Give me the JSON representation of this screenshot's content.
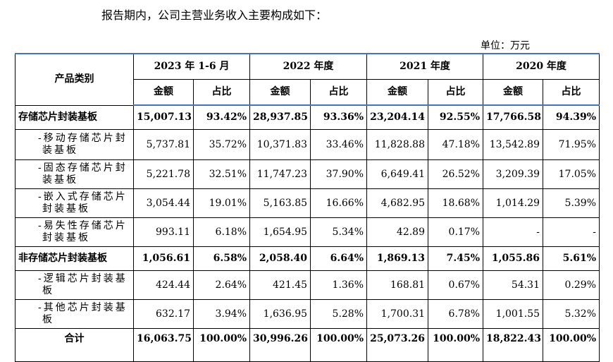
{
  "intro": "报告期内，公司主营业务收入主要构成如下：",
  "unit": "单位：万元",
  "table": {
    "header": {
      "category": "产品类别",
      "periods": [
        "2023 年 1-6 月",
        "2022 年度",
        "2021 年度",
        "2020 年度"
      ],
      "amount": "金额",
      "ratio": "占比"
    },
    "rows": [
      {
        "label": "存储芯片封装基板",
        "values": [
          "15,007.13",
          "93.42%",
          "28,937.85",
          "93.36%",
          "23,204.14",
          "92.55%",
          "17,766.58",
          "94.39%"
        ]
      },
      {
        "label": "-移动存储芯片封装基板",
        "values": [
          "5,737.81",
          "35.72%",
          "10,371.83",
          "33.46%",
          "11,828.88",
          "47.18%",
          "13,542.89",
          "71.95%"
        ]
      },
      {
        "label": "-固态存储芯片封装基板",
        "values": [
          "5,221.78",
          "32.51%",
          "11,747.23",
          "37.90%",
          "6,649.41",
          "26.52%",
          "3,209.39",
          "17.05%"
        ]
      },
      {
        "label": "-嵌入式存储芯片封装基板",
        "values": [
          "3,054.44",
          "19.01%",
          "5,163.85",
          "16.66%",
          "4,682.95",
          "18.68%",
          "1,014.29",
          "5.39%"
        ]
      },
      {
        "label": "-易失性存储芯片封装基板",
        "values": [
          "993.11",
          "6.18%",
          "1,654.95",
          "5.34%",
          "42.89",
          "0.17%",
          "-",
          "-"
        ]
      },
      {
        "label": "非存储芯片封装基板",
        "values": [
          "1,056.61",
          "6.58%",
          "2,058.40",
          "6.64%",
          "1,869.13",
          "7.45%",
          "1,055.86",
          "5.61%"
        ]
      },
      {
        "label": "-逻辑芯片封装基板",
        "values": [
          "424.44",
          "2.64%",
          "421.45",
          "1.36%",
          "168.81",
          "0.67%",
          "54.31",
          "0.29%"
        ]
      },
      {
        "label": "-其他芯片封装基板",
        "values": [
          "632.17",
          "3.94%",
          "1,636.95",
          "5.28%",
          "1,700.31",
          "6.78%",
          "1,001.55",
          "5.32%"
        ]
      },
      {
        "label": "合计",
        "values": [
          "16,063.75",
          "100.00%",
          "30,996.26",
          "100.00%",
          "25,073.26",
          "100.00%",
          "18,822.43",
          "100.00%"
        ]
      }
    ]
  }
}
